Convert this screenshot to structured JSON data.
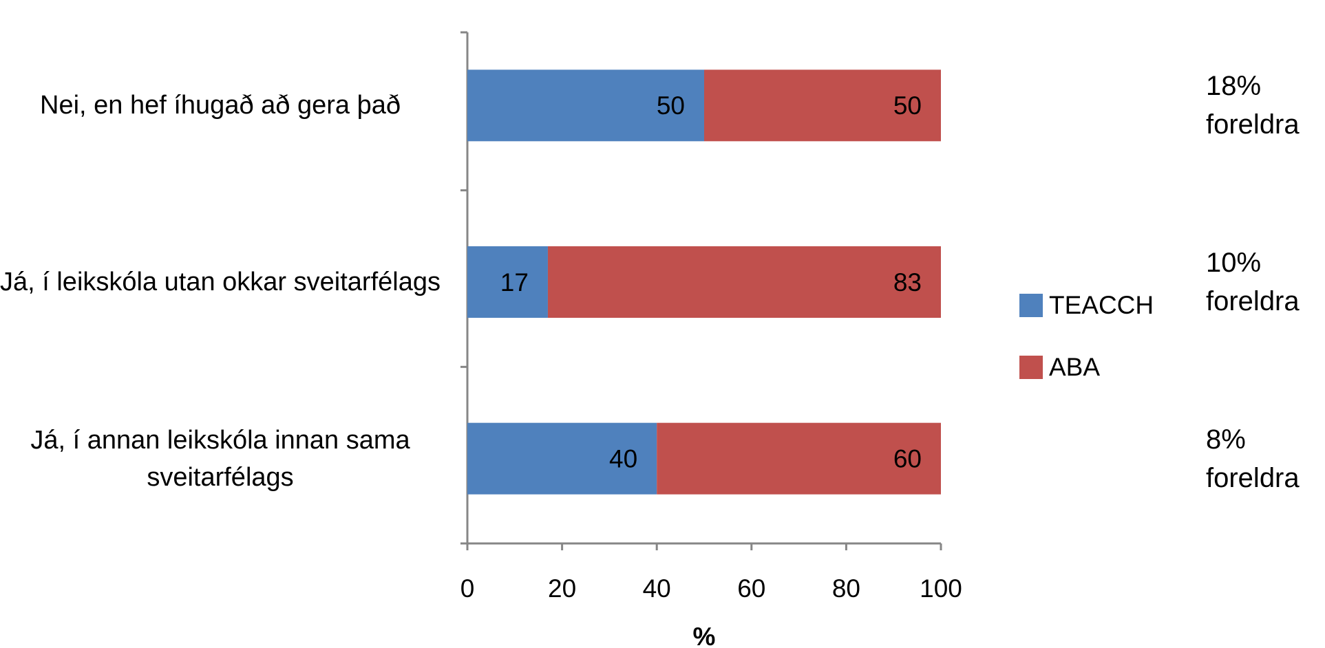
{
  "chart_data": {
    "type": "stacked-barh",
    "categories": [
      "Nei, en hef íhugað að gera það",
      "Já, í leikskóla utan okkar sveitarfélags",
      "Já, í annan leikskóla innan sama sveitarfélags"
    ],
    "series": [
      {
        "name": "TEACCH",
        "color": "#4f81bd",
        "values": [
          50,
          17,
          40
        ]
      },
      {
        "name": "ABA",
        "color": "#c0504d",
        "values": [
          50,
          83,
          60
        ]
      }
    ],
    "annotations": [
      "18% foreldra",
      "10% foreldra",
      "8% foreldra"
    ],
    "xlabel": "%",
    "xlim": [
      0,
      100
    ],
    "xticks": [
      0,
      20,
      40,
      60,
      80,
      100
    ],
    "legend": "right"
  }
}
